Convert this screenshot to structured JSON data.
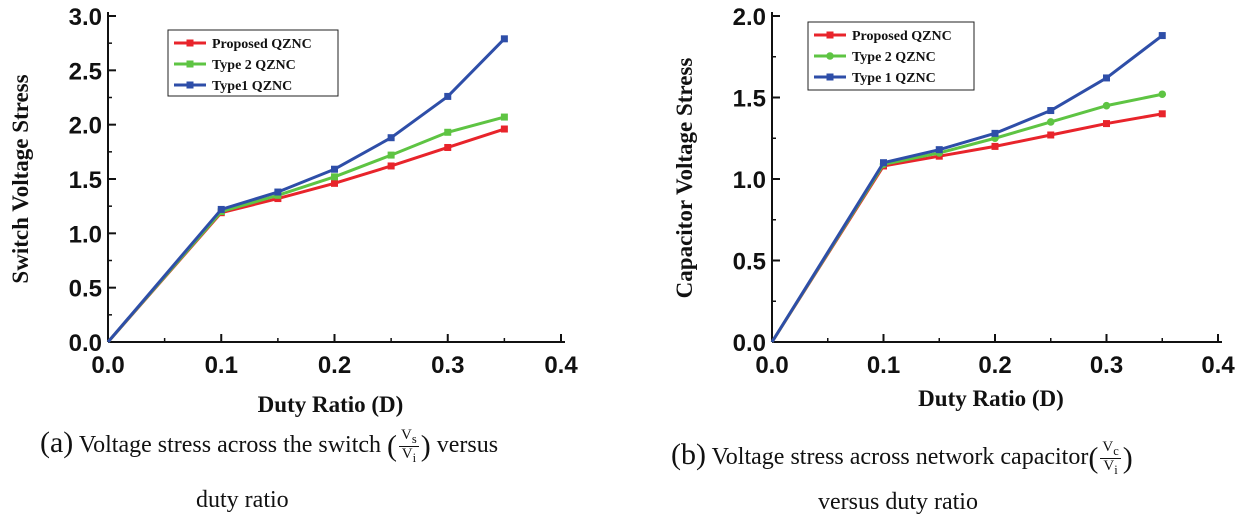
{
  "colors": {
    "proposed": "#e8242b",
    "type2": "#5ec443",
    "type1": "#2e4ea8"
  },
  "chart_data": [
    {
      "type": "line",
      "id": "a",
      "xlabel": "Duty Ratio (D)",
      "ylabel": "Switch Voltage Stress",
      "xlim": [
        0.0,
        0.4
      ],
      "ylim": [
        0.0,
        3.0
      ],
      "xticks": [
        "0.0",
        "0.1",
        "0.2",
        "0.3",
        "0.4"
      ],
      "yticks": [
        "0.0",
        "0.5",
        "1.0",
        "1.5",
        "2.0",
        "2.5",
        "3.0"
      ],
      "x": [
        0,
        0.1,
        0.15,
        0.2,
        0.25,
        0.3,
        0.35
      ],
      "legend": "top-left",
      "series": [
        {
          "name": "Proposed QZNC",
          "color_key": "proposed",
          "marker": "square",
          "values": [
            0,
            1.19,
            1.32,
            1.46,
            1.62,
            1.79,
            1.96
          ]
        },
        {
          "name": "Type 2 QZNC",
          "color_key": "type2",
          "marker": "square",
          "values": [
            0,
            1.2,
            1.35,
            1.52,
            1.72,
            1.93,
            2.07
          ]
        },
        {
          "name": "Type1 QZNC",
          "color_key": "type1",
          "marker": "square",
          "values": [
            0,
            1.22,
            1.38,
            1.59,
            1.88,
            2.26,
            2.79
          ]
        }
      ]
    },
    {
      "type": "line",
      "id": "b",
      "xlabel": "Duty Ratio (D)",
      "ylabel": "Capacitor Voltage Stress",
      "xlim": [
        0.0,
        0.4
      ],
      "ylim": [
        0.0,
        2.0
      ],
      "xticks": [
        "0.0",
        "0.1",
        "0.2",
        "0.3",
        "0.4"
      ],
      "yticks": [
        "0.0",
        "0.5",
        "1.0",
        "1.5",
        "2.0"
      ],
      "x": [
        0,
        0.1,
        0.15,
        0.2,
        0.25,
        0.3,
        0.35
      ],
      "legend": "top-left",
      "series": [
        {
          "name": "Proposed QZNC",
          "color_key": "proposed",
          "marker": "square",
          "values": [
            0,
            1.08,
            1.14,
            1.2,
            1.27,
            1.34,
            1.4
          ]
        },
        {
          "name": "Type 2 QZNC",
          "color_key": "type2",
          "marker": "circle",
          "values": [
            0,
            1.09,
            1.16,
            1.25,
            1.35,
            1.45,
            1.52
          ]
        },
        {
          "name": "Type 1 QZNC",
          "color_key": "type1",
          "marker": "square",
          "values": [
            0,
            1.1,
            1.18,
            1.28,
            1.42,
            1.62,
            1.88
          ]
        }
      ]
    }
  ],
  "captions": {
    "a": {
      "letter": "(a)",
      "text": "Voltage stress across the switch",
      "paren_open": "(",
      "num": "V",
      "num_sub": "s",
      "den": "V",
      "den_sub": "i",
      "paren_close": ")",
      "tail": "versus",
      "line2": "duty ratio"
    },
    "b": {
      "letter": "(b)",
      "text": "Voltage stress across network capacitor",
      "paren_open": "(",
      "num": "V",
      "num_sub": "c",
      "den": "V",
      "den_sub": "i",
      "paren_close": ")",
      "line2": "versus duty ratio"
    }
  }
}
